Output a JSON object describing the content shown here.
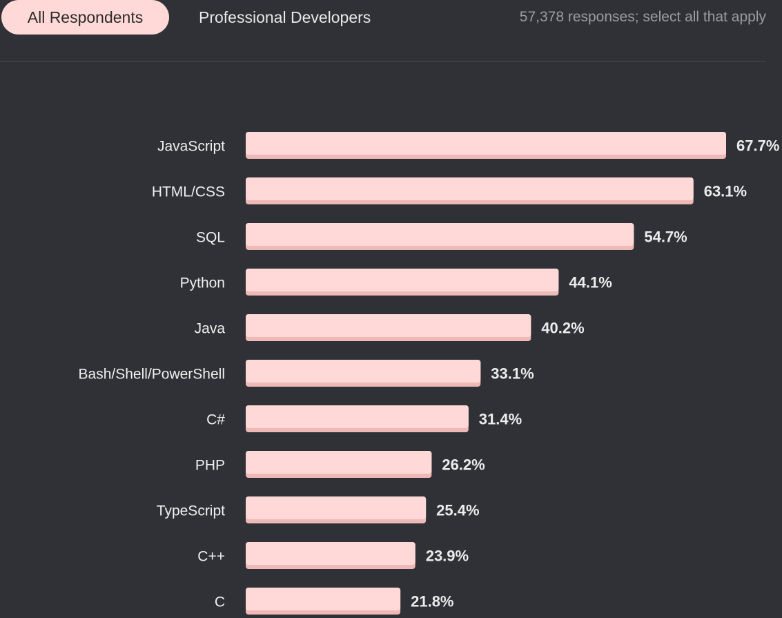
{
  "tabs": {
    "active": "All Respondents",
    "inactive": "Professional Developers"
  },
  "note": "57,378 responses; select all that apply",
  "colors": {
    "background": "#2f3136",
    "bar": "#ffd9d7",
    "bar_shadow": "#efb9b7",
    "text": "#f0f0f0"
  },
  "chart_data": {
    "type": "bar",
    "orientation": "horizontal",
    "categories": [
      "JavaScript",
      "HTML/CSS",
      "SQL",
      "Python",
      "Java",
      "Bash/Shell/PowerShell",
      "C#",
      "PHP",
      "TypeScript",
      "C++",
      "C"
    ],
    "values": [
      67.7,
      63.1,
      54.7,
      44.1,
      40.2,
      33.1,
      31.4,
      26.2,
      25.4,
      23.9,
      21.8
    ],
    "value_labels": [
      "67.7%",
      "63.1%",
      "54.7%",
      "44.1%",
      "40.2%",
      "33.1%",
      "31.4%",
      "26.2%",
      "25.4%",
      "23.9%",
      "21.8%"
    ],
    "unit": "%",
    "xlim": [
      0,
      67.7
    ],
    "title": "",
    "xlabel": "",
    "ylabel": ""
  }
}
